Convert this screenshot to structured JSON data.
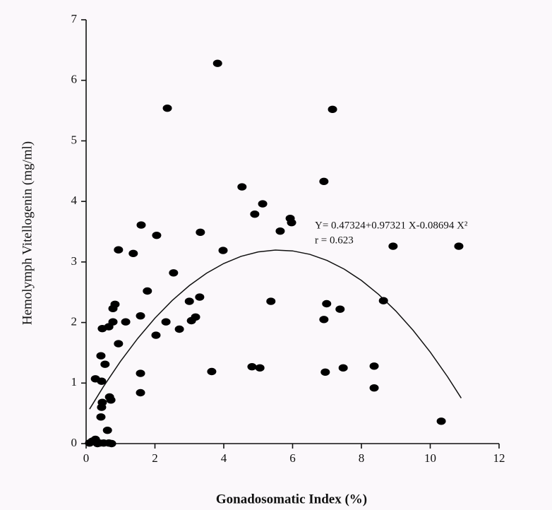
{
  "chart_data": {
    "type": "scatter",
    "x_label": "Gonadosomatic Index (%)",
    "y_label": "Hemolymph Vitellogenin (mg/ml)",
    "equation": "Y= 0.47324+0.97321 X-0.08694 X²",
    "r_label": "r = 0.623",
    "xlim": [
      0,
      12
    ],
    "ylim": [
      0,
      7
    ],
    "xticks": [
      0,
      2,
      4,
      6,
      8,
      10,
      12
    ],
    "yticks": [
      0,
      1,
      2,
      3,
      4,
      5,
      6,
      7
    ],
    "color": "#000000",
    "points": {
      "x": [
        3.82,
        2.36,
        7.16,
        4.53,
        6.91,
        5.13,
        4.9,
        5.93,
        5.97,
        5.64,
        1.6,
        2.05,
        3.32,
        3.98,
        0.94,
        1.37,
        8.92,
        10.83,
        2.54,
        1.78,
        3.3,
        3.0,
        3.18,
        3.06,
        5.37,
        6.99,
        7.38,
        8.64,
        6.91,
        0.84,
        0.78,
        1.58,
        0.78,
        1.15,
        2.32,
        2.03,
        2.71,
        0.94,
        0.47,
        0.66,
        0.43,
        0.55,
        3.65,
        4.82,
        5.05,
        1.58,
        6.95,
        7.47,
        8.37,
        8.37,
        1.58,
        0.27,
        0.45,
        0.47,
        0.45,
        0.68,
        0.72,
        0.43,
        0.62,
        10.32,
        0.1,
        0.18,
        0.27,
        0.39,
        0.51,
        0.66,
        0.74,
        0.33
      ],
      "y": [
        6.28,
        5.54,
        5.52,
        4.24,
        4.33,
        3.96,
        3.79,
        3.72,
        3.65,
        3.51,
        3.61,
        3.44,
        3.49,
        3.19,
        3.2,
        3.14,
        3.26,
        3.26,
        2.82,
        2.52,
        2.42,
        2.35,
        2.09,
        2.03,
        2.35,
        2.31,
        2.22,
        2.36,
        2.05,
        2.3,
        2.23,
        2.11,
        2.01,
        2.01,
        2.01,
        1.79,
        1.89,
        1.65,
        1.9,
        1.93,
        1.45,
        1.31,
        1.19,
        1.27,
        1.25,
        1.16,
        1.18,
        1.25,
        1.28,
        0.92,
        0.84,
        1.07,
        1.03,
        0.68,
        0.6,
        0.77,
        0.72,
        0.44,
        0.22,
        0.37,
        0.01,
        0.04,
        0.07,
        0.01,
        0.01,
        0.01,
        0,
        0
      ]
    },
    "fit": {
      "x": [
        0.1,
        0.5,
        1,
        1.5,
        2,
        2.5,
        3,
        3.5,
        4,
        4.5,
        5,
        5.5,
        6,
        6.5,
        7,
        7.5,
        8,
        8.5,
        9,
        9.5,
        10,
        10.5,
        10.9
      ],
      "y": [
        0.5697,
        0.9381,
        1.3595,
        1.7374,
        2.0719,
        2.3629,
        2.6104,
        2.8145,
        2.975,
        3.0921,
        3.1658,
        3.196,
        3.1827,
        3.1259,
        3.0257,
        2.8819,
        2.6948,
        2.4641,
        2.19,
        1.8724,
        1.5113,
        1.1068,
        0.7518
      ]
    }
  }
}
